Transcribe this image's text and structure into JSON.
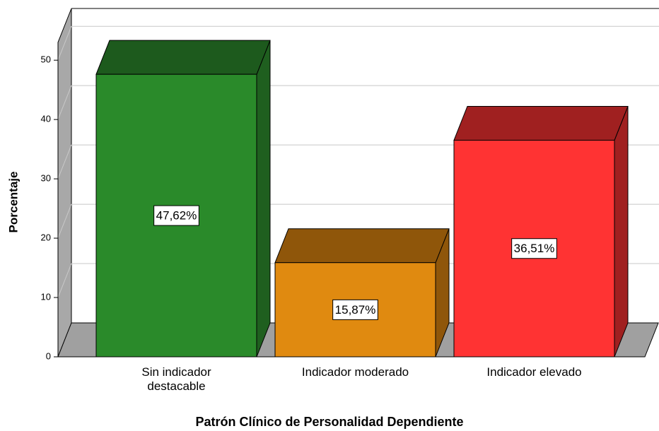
{
  "chart_data": {
    "type": "bar3d",
    "x_label": "Patrón Clínico de Personalidad Dependiente",
    "y_label": "Porcentaje",
    "categories": [
      "Sin indicador destacable",
      "Indicador moderado",
      "Indicador elevado"
    ],
    "values": [
      47.62,
      15.87,
      36.51
    ],
    "value_labels": [
      "47,62%",
      "15,87%",
      "36,51%"
    ],
    "colors": [
      "#2a8a2a",
      "#e08a10",
      "#ff3333"
    ],
    "top_colors": [
      "#1d5a1d",
      "#8f560a",
      "#a02020"
    ],
    "side_colors": [
      "#1f5f1f",
      "#8f560a",
      "#a02020"
    ],
    "ylim": [
      0,
      53
    ],
    "yticks": [
      0,
      10,
      20,
      30,
      40,
      50
    ],
    "grid": true
  }
}
